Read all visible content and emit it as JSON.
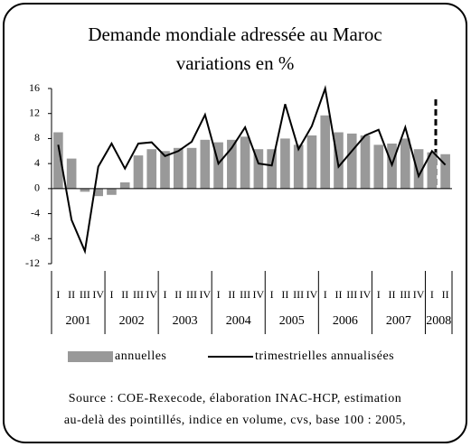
{
  "chart_data": {
    "type": "bar_line",
    "title": "Demande mondiale adressée au Maroc",
    "subtitle": "variations en %",
    "categories": [
      "I",
      "II",
      "III",
      "IV",
      "I",
      "II",
      "III",
      "IV",
      "I",
      "II",
      "III",
      "IV",
      "I",
      "II",
      "III",
      "IV",
      "I",
      "II",
      "III",
      "IV",
      "I",
      "II",
      "III",
      "IV",
      "I",
      "II",
      "III",
      "IV",
      "I",
      "II"
    ],
    "years": [
      "2001",
      "2002",
      "2003",
      "2004",
      "2005",
      "2006",
      "2007",
      "2008"
    ],
    "series": [
      {
        "name": "annuelles",
        "color": "#999999",
        "kind": "bar",
        "values": [
          9,
          4.8,
          -0.5,
          -1.2,
          -1,
          1,
          5.3,
          6.3,
          6,
          6.5,
          6.5,
          7.8,
          7.4,
          7.8,
          8.3,
          6.3,
          6.3,
          8,
          7,
          8.5,
          11.7,
          9,
          8.8,
          8.5,
          7,
          7.2,
          8,
          6.3,
          5.8,
          5.5
        ]
      },
      {
        "name": "trimestrielles annualisées",
        "color": "#000000",
        "kind": "line",
        "values": [
          7,
          -5,
          -10,
          3.5,
          7.2,
          3.2,
          7.2,
          7.4,
          5.2,
          6,
          7.5,
          11.8,
          4,
          6.5,
          9.8,
          4,
          3.7,
          13.5,
          6.3,
          10,
          16,
          3.5,
          6,
          8.5,
          9.4,
          3.8,
          9.8,
          2,
          6,
          3.8
        ]
      }
    ],
    "ylim": [
      -12,
      16
    ],
    "yticks": [
      -12,
      -8,
      -4,
      0,
      4,
      8,
      12,
      16
    ],
    "source": [
      "Source : COE-Rexecode, élaboration INAC-HCP, estimation",
      "au-delà des pointillés, indice en volume, cvs, base 100 : 2005,"
    ]
  }
}
